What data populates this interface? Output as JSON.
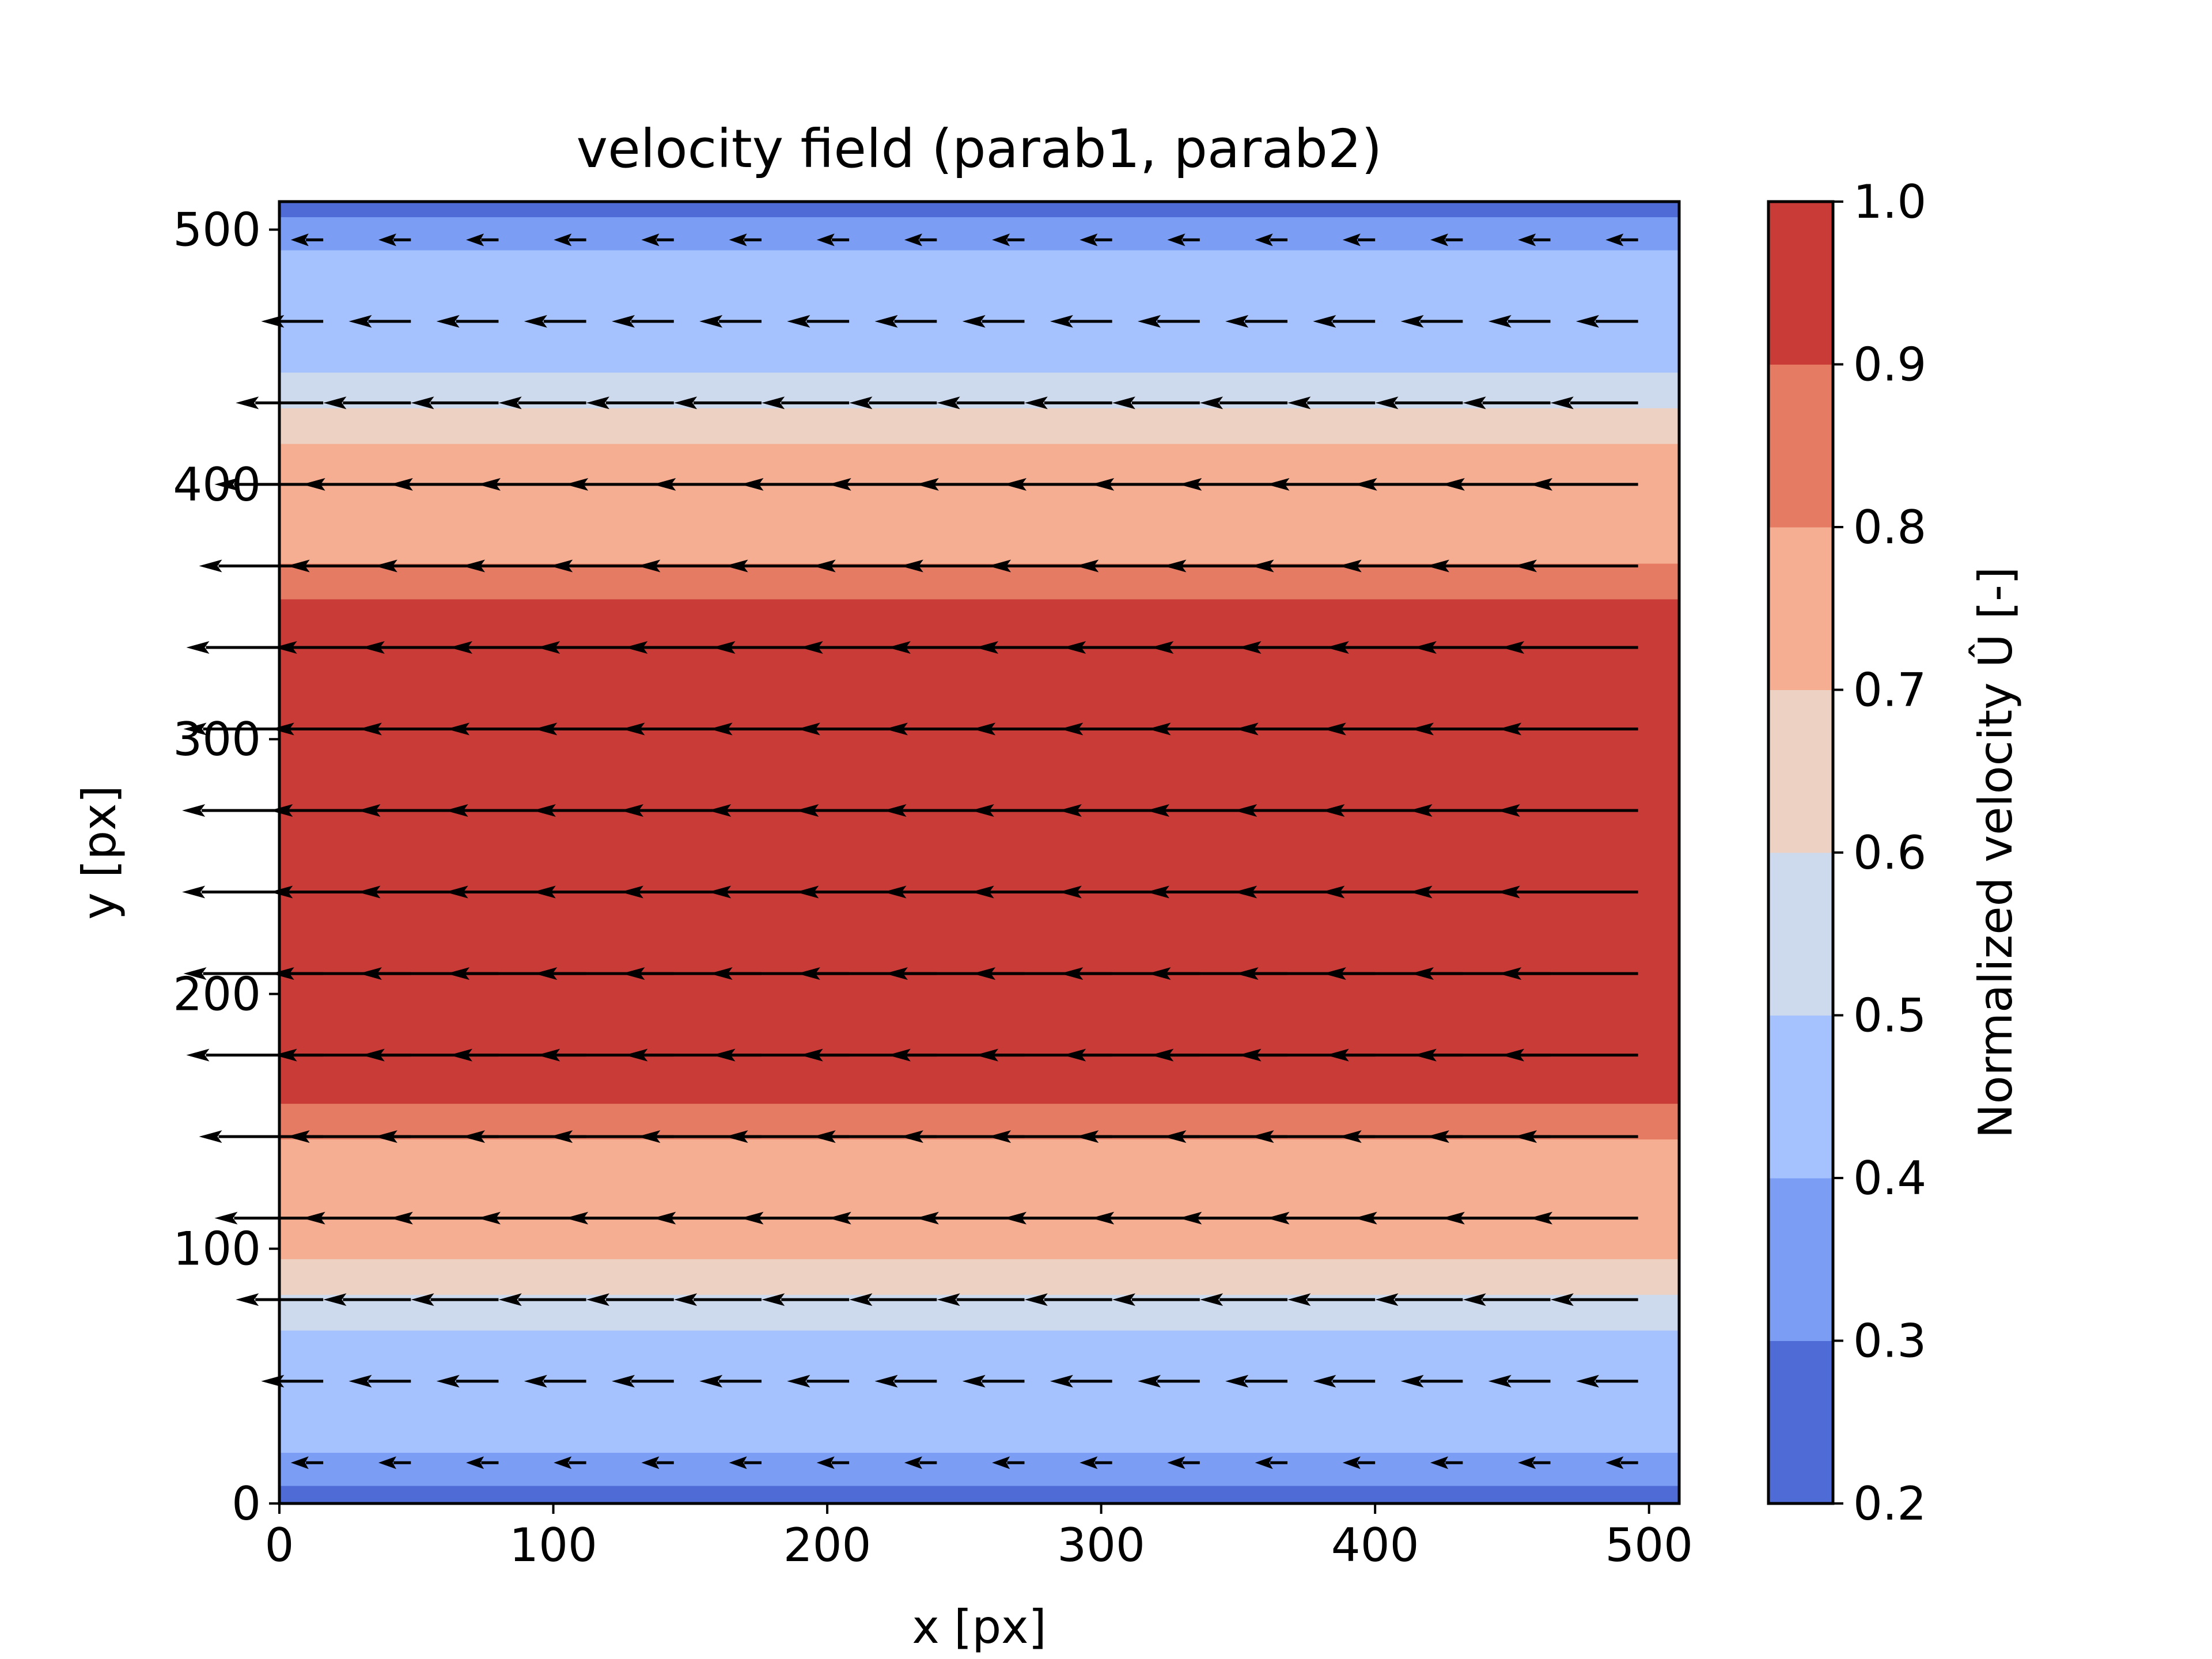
{
  "chart_data": {
    "type": "heatmap",
    "subtype": "filled-contour with quiver",
    "title": "velocity field (parab1, parab2)",
    "xlabel": "x [px]",
    "ylabel": "y [px]",
    "xlim": [
      0,
      511
    ],
    "ylim": [
      0,
      511
    ],
    "xticks": [
      0,
      100,
      200,
      300,
      400,
      500
    ],
    "yticks": [
      0,
      100,
      200,
      300,
      400,
      500
    ],
    "colorbar": {
      "label": "Normalized velocity Û [-]",
      "levels": [
        0.2,
        0.3,
        0.4,
        0.5,
        0.6,
        0.7,
        0.8,
        0.9,
        1.0
      ],
      "tick_labels": [
        "0.2",
        "0.3",
        "0.4",
        "0.5",
        "0.6",
        "0.7",
        "0.8",
        "0.9",
        "1.0"
      ],
      "colors": [
        "#4e6bd6",
        "#7b9df4",
        "#a5c2fe",
        "#cdd9ec",
        "#edd2c3",
        "#f5ae91",
        "#e57b62",
        "#c93b37"
      ]
    },
    "bands": [
      {
        "y0": 0,
        "y1": 7,
        "level_index": 0
      },
      {
        "y0": 7,
        "y1": 20,
        "level_index": 1
      },
      {
        "y0": 20,
        "y1": 68,
        "level_index": 2
      },
      {
        "y0": 68,
        "y1": 82,
        "level_index": 3
      },
      {
        "y0": 82,
        "y1": 96,
        "level_index": 4
      },
      {
        "y0": 96,
        "y1": 143,
        "level_index": 5
      },
      {
        "y0": 143,
        "y1": 157,
        "level_index": 6
      },
      {
        "y0": 157,
        "y1": 355,
        "level_index": 7
      },
      {
        "y0": 355,
        "y1": 369,
        "level_index": 6
      },
      {
        "y0": 369,
        "y1": 416,
        "level_index": 5
      },
      {
        "y0": 416,
        "y1": 430,
        "level_index": 4
      },
      {
        "y0": 430,
        "y1": 444,
        "level_index": 3
      },
      {
        "y0": 444,
        "y1": 492,
        "level_index": 2
      },
      {
        "y0": 492,
        "y1": 505,
        "level_index": 1
      },
      {
        "y0": 505,
        "y1": 511,
        "level_index": 0
      }
    ],
    "quiver": {
      "direction": "negative x",
      "x": [
        16,
        48,
        80,
        112,
        144,
        176,
        208,
        240,
        272,
        304,
        336,
        368,
        400,
        432,
        464,
        496
      ],
      "y": [
        16,
        48,
        80,
        112,
        144,
        176,
        208,
        240,
        272,
        304,
        336,
        368,
        400,
        432,
        464,
        496
      ],
      "u_magnitude": [
        0.23,
        0.44,
        0.62,
        0.77,
        0.88,
        0.97,
        0.99,
        1.0,
        1.0,
        0.99,
        0.97,
        0.88,
        0.77,
        0.62,
        0.44,
        0.23
      ]
    }
  }
}
